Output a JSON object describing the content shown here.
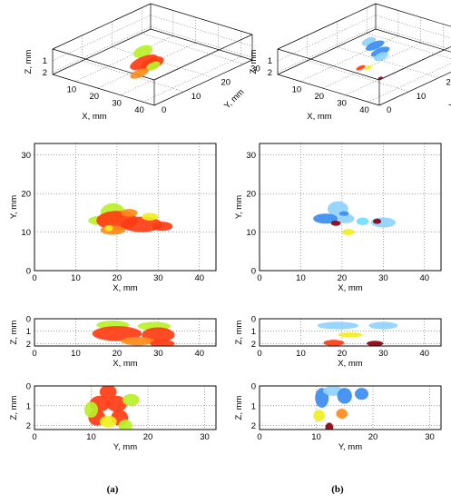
{
  "figure": {
    "caption_a": "(a)",
    "caption_b": "(b)"
  },
  "colors": {
    "red": "#ff3c14",
    "orange": "#ff8a1a",
    "yellow": "#eef020",
    "lime": "#b8f028",
    "light_blue": "#8fd3ff",
    "blue": "#3a8cf0",
    "cyan": "#6fe0ff",
    "dark_red": "#8b0010"
  },
  "chart_data": [
    {
      "id": "a-3d",
      "type": "scatter",
      "view": "3d",
      "xlabel": "X, mm",
      "ylabel": "Y, mm",
      "zlabel": "Z, mm",
      "xticks": [
        "10",
        "20",
        "30",
        "40"
      ],
      "yticks": [
        "0",
        "10",
        "20",
        "30"
      ],
      "zticks": [
        "1",
        "2"
      ],
      "xlim": [
        0,
        45
      ],
      "ylim": [
        0,
        33
      ],
      "zlim": [
        0,
        2.2
      ],
      "blobs": [
        {
          "x": 19,
          "y": 16,
          "z": 1,
          "rx": 4,
          "ry": 3,
          "color": "lime"
        },
        {
          "x": 22,
          "y": 14,
          "z": 1.5,
          "rx": 6,
          "ry": 3,
          "color": "red"
        },
        {
          "x": 27,
          "y": 13,
          "z": 1.2,
          "rx": 5,
          "ry": 3,
          "color": "red"
        },
        {
          "x": 30,
          "y": 11,
          "z": 1,
          "rx": 3,
          "ry": 2,
          "color": "lime"
        },
        {
          "x": 24,
          "y": 11,
          "z": 2,
          "rx": 4,
          "ry": 2,
          "color": "orange"
        }
      ]
    },
    {
      "id": "b-3d",
      "type": "scatter",
      "view": "3d",
      "xlabel": "X, mm",
      "ylabel": "Y, mm",
      "zlabel": "Z, mm",
      "xticks": [
        "10",
        "20",
        "30",
        "40"
      ],
      "yticks": [
        "0",
        "10",
        "20",
        "30"
      ],
      "zticks": [
        "1",
        "2"
      ],
      "xlim": [
        0,
        45
      ],
      "ylim": [
        0,
        33
      ],
      "zlim": [
        0,
        2.2
      ],
      "blobs": [
        {
          "x": 18,
          "y": 17,
          "z": 0.3,
          "rx": 3,
          "ry": 2,
          "color": "light_blue"
        },
        {
          "x": 22,
          "y": 16,
          "z": 0.3,
          "rx": 4,
          "ry": 2,
          "color": "blue"
        },
        {
          "x": 27,
          "y": 14,
          "z": 0.3,
          "rx": 4,
          "ry": 2,
          "color": "blue"
        },
        {
          "x": 30,
          "y": 12,
          "z": 0.3,
          "rx": 3,
          "ry": 2,
          "color": "light_blue"
        },
        {
          "x": 21,
          "y": 12,
          "z": 1.8,
          "rx": 2,
          "ry": 1,
          "color": "red"
        },
        {
          "x": 23,
          "y": 13,
          "z": 1.8,
          "rx": 1.5,
          "ry": 1,
          "color": "yellow"
        },
        {
          "x": 31,
          "y": 11,
          "z": 2.0,
          "rx": 1,
          "ry": 0.8,
          "color": "dark_red"
        }
      ]
    },
    {
      "id": "a-xy",
      "type": "scatter",
      "view": "top",
      "xlabel": "X, mm",
      "ylabel": "Y, mm",
      "xticks": [
        "0",
        "10",
        "20",
        "30",
        "40"
      ],
      "yticks": [
        "0",
        "10",
        "20",
        "30"
      ],
      "xlim": [
        0,
        44
      ],
      "ylim": [
        0,
        33
      ],
      "blobs": [
        {
          "x": 19,
          "y": 15,
          "rx": 3,
          "ry": 2.5,
          "color": "lime"
        },
        {
          "x": 16,
          "y": 13,
          "rx": 3,
          "ry": 1.2,
          "color": "lime"
        },
        {
          "x": 20,
          "y": 13,
          "rx": 5,
          "ry": 2.5,
          "color": "red"
        },
        {
          "x": 26,
          "y": 12,
          "rx": 5,
          "ry": 2,
          "color": "red"
        },
        {
          "x": 31,
          "y": 11.5,
          "rx": 2.5,
          "ry": 1.2,
          "color": "red"
        },
        {
          "x": 19,
          "y": 10.5,
          "rx": 3,
          "ry": 1.2,
          "color": "orange"
        },
        {
          "x": 28,
          "y": 14,
          "rx": 2,
          "ry": 1,
          "color": "yellow"
        },
        {
          "x": 23,
          "y": 15,
          "rx": 2,
          "ry": 1,
          "color": "orange"
        },
        {
          "x": 18,
          "y": 11,
          "rx": 1,
          "ry": 0.8,
          "color": "yellow"
        }
      ]
    },
    {
      "id": "b-xy",
      "type": "scatter",
      "view": "top",
      "xlabel": "X, mm",
      "ylabel": "Y, mm",
      "xticks": [
        "0",
        "10",
        "20",
        "30",
        "40"
      ],
      "yticks": [
        "0",
        "10",
        "20",
        "30"
      ],
      "xlim": [
        0,
        44
      ],
      "ylim": [
        0,
        33
      ],
      "blobs": [
        {
          "x": 19,
          "y": 16,
          "rx": 2.5,
          "ry": 2,
          "color": "light_blue"
        },
        {
          "x": 16,
          "y": 13.5,
          "rx": 3,
          "ry": 1.3,
          "color": "blue"
        },
        {
          "x": 21,
          "y": 13.5,
          "rx": 2,
          "ry": 1.2,
          "color": "light_blue"
        },
        {
          "x": 25,
          "y": 12.8,
          "rx": 1.5,
          "ry": 1,
          "color": "cyan"
        },
        {
          "x": 30,
          "y": 12.5,
          "rx": 3,
          "ry": 1.3,
          "color": "light_blue"
        },
        {
          "x": 18.5,
          "y": 12.3,
          "rx": 1.2,
          "ry": 0.7,
          "color": "dark_red"
        },
        {
          "x": 28.5,
          "y": 12.8,
          "rx": 1,
          "ry": 0.7,
          "color": "dark_red"
        },
        {
          "x": 21.5,
          "y": 10,
          "rx": 1.5,
          "ry": 0.8,
          "color": "yellow"
        },
        {
          "x": 20.5,
          "y": 14.8,
          "rx": 1.2,
          "ry": 0.6,
          "color": "blue"
        }
      ]
    },
    {
      "id": "a-xz",
      "type": "scatter",
      "view": "front",
      "xlabel": "X, mm",
      "ylabel": "Z, mm",
      "xticks": [
        "0",
        "10",
        "20",
        "30",
        "40"
      ],
      "yticks": [
        "0",
        "1",
        "2"
      ],
      "xlim": [
        0,
        44
      ],
      "ylim": [
        0,
        2.2
      ],
      "y_inverted": true,
      "blobs": [
        {
          "x": 19,
          "y": 0.5,
          "rx": 4,
          "ry": 0.35,
          "color": "lime"
        },
        {
          "x": 29,
          "y": 0.6,
          "rx": 4,
          "ry": 0.35,
          "color": "lime"
        },
        {
          "x": 20,
          "y": 1.2,
          "rx": 6,
          "ry": 0.6,
          "color": "red"
        },
        {
          "x": 30,
          "y": 1.3,
          "rx": 4,
          "ry": 0.6,
          "color": "red"
        },
        {
          "x": 25,
          "y": 1.8,
          "rx": 4,
          "ry": 0.35,
          "color": "orange"
        },
        {
          "x": 31,
          "y": 2.0,
          "rx": 3,
          "ry": 0.3,
          "color": "red"
        }
      ]
    },
    {
      "id": "b-xz",
      "type": "scatter",
      "view": "front",
      "xlabel": "X, mm",
      "ylabel": "Z, mm",
      "xticks": [
        "0",
        "10",
        "20",
        "30",
        "40"
      ],
      "yticks": [
        "0",
        "1",
        "2"
      ],
      "xlim": [
        0,
        44
      ],
      "ylim": [
        0,
        2.2
      ],
      "y_inverted": true,
      "blobs": [
        {
          "x": 19,
          "y": 0.55,
          "rx": 5,
          "ry": 0.3,
          "color": "light_blue"
        },
        {
          "x": 30,
          "y": 0.55,
          "rx": 3.5,
          "ry": 0.3,
          "color": "light_blue"
        },
        {
          "x": 22,
          "y": 1.3,
          "rx": 3,
          "ry": 0.2,
          "color": "yellow"
        },
        {
          "x": 18,
          "y": 1.95,
          "rx": 2.5,
          "ry": 0.25,
          "color": "red"
        },
        {
          "x": 28,
          "y": 2.0,
          "rx": 2,
          "ry": 0.22,
          "color": "dark_red"
        }
      ]
    },
    {
      "id": "a-yz",
      "type": "scatter",
      "view": "side",
      "xlabel": "Y, mm",
      "ylabel": "Z, mm",
      "xticks": [
        "0",
        "10",
        "20",
        "30"
      ],
      "yticks": [
        "0",
        "1",
        "2"
      ],
      "xlim": [
        0,
        32
      ],
      "ylim": [
        0,
        2.2
      ],
      "y_inverted": true,
      "blobs": [
        {
          "x": 13,
          "y": 0.3,
          "rx": 1.5,
          "ry": 0.35,
          "color": "red"
        },
        {
          "x": 11.5,
          "y": 0.9,
          "rx": 1.8,
          "ry": 0.4,
          "color": "red"
        },
        {
          "x": 14.5,
          "y": 0.9,
          "rx": 1.8,
          "ry": 0.4,
          "color": "red"
        },
        {
          "x": 11,
          "y": 1.6,
          "rx": 1.5,
          "ry": 0.4,
          "color": "red"
        },
        {
          "x": 15,
          "y": 1.6,
          "rx": 1.5,
          "ry": 0.4,
          "color": "red"
        },
        {
          "x": 17,
          "y": 0.7,
          "rx": 1.5,
          "ry": 0.3,
          "color": "lime"
        },
        {
          "x": 10,
          "y": 1.2,
          "rx": 1.2,
          "ry": 0.4,
          "color": "lime"
        },
        {
          "x": 13,
          "y": 1.8,
          "rx": 1.5,
          "ry": 0.3,
          "color": "yellow"
        },
        {
          "x": 16,
          "y": 2.0,
          "rx": 1.2,
          "ry": 0.3,
          "color": "lime"
        }
      ]
    },
    {
      "id": "b-yz",
      "type": "scatter",
      "view": "side",
      "xlabel": "Y, mm",
      "ylabel": "Z, mm",
      "xticks": [
        "0",
        "10",
        "20",
        "30"
      ],
      "yticks": [
        "0",
        "1",
        "2"
      ],
      "xlim": [
        0,
        32
      ],
      "ylim": [
        0,
        2.2
      ],
      "y_inverted": true,
      "blobs": [
        {
          "x": 11,
          "y": 0.6,
          "rx": 1.2,
          "ry": 0.5,
          "color": "blue"
        },
        {
          "x": 13,
          "y": 0.25,
          "rx": 1.8,
          "ry": 0.25,
          "color": "light_blue"
        },
        {
          "x": 15,
          "y": 0.5,
          "rx": 1.3,
          "ry": 0.4,
          "color": "blue"
        },
        {
          "x": 18,
          "y": 0.4,
          "rx": 1.2,
          "ry": 0.3,
          "color": "blue"
        },
        {
          "x": 10.5,
          "y": 1.5,
          "rx": 1,
          "ry": 0.3,
          "color": "yellow"
        },
        {
          "x": 14.5,
          "y": 1.4,
          "rx": 1,
          "ry": 0.25,
          "color": "orange"
        },
        {
          "x": 12.3,
          "y": 2.1,
          "rx": 0.7,
          "ry": 0.25,
          "color": "dark_red"
        }
      ]
    }
  ]
}
